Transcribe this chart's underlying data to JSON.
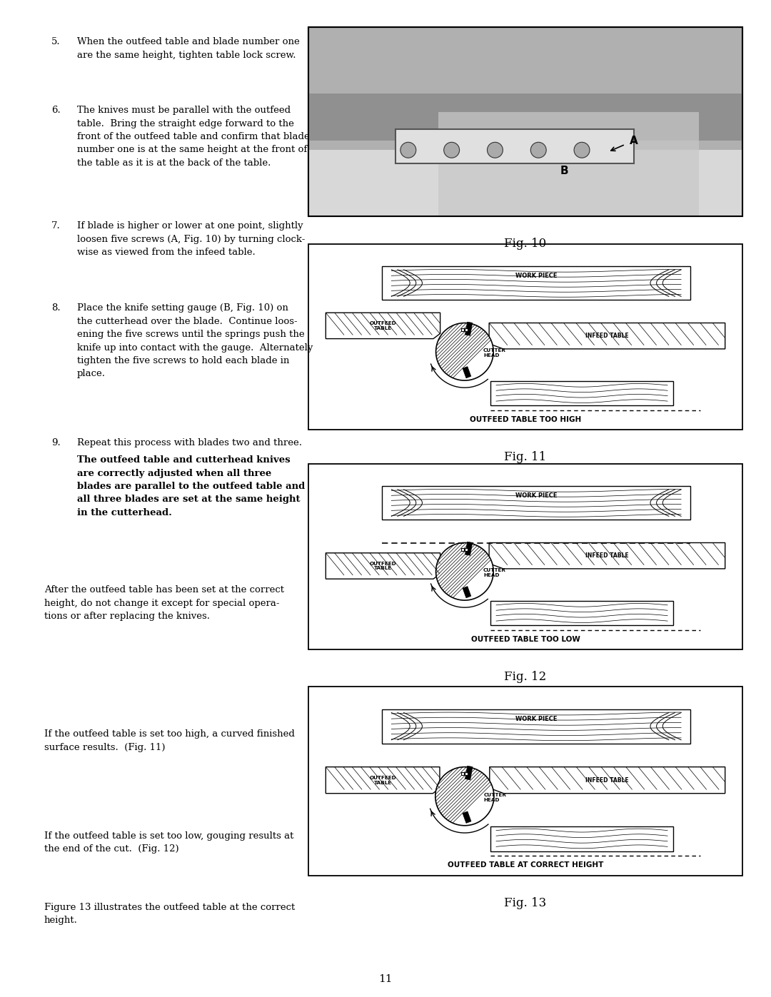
{
  "bg_color": "#ffffff",
  "text_color": "#000000",
  "page_number": "11",
  "fig10_caption": "Fig. 10",
  "fig11_caption": "Fig. 11",
  "fig11_label": "OUTFEED TABLE TOO HIGH",
  "fig12_caption": "Fig. 12",
  "fig12_label": "OUTFEED TABLE TOO LOW",
  "fig13_caption": "Fig. 13",
  "fig13_label": "OUTFEED TABLE AT CORRECT HEIGHT",
  "item5": "When the outfeed table and blade number one\nare the same height, tighten table lock screw.",
  "item6": "The knives must be parallel with the outfeed\ntable.  Bring the straight edge forward to the\nfront of the outfeed table and confirm that blade\nnumber one is at the same height at the front of\nthe table as it is at the back of the table.",
  "item7": "If blade is higher or lower at one point, slightly\nloosen five screws (A, Fig. 10) by turning clock-\nwise as viewed from the infeed table.",
  "item8": "Place the knife setting gauge (B, Fig. 10) on\nthe cutterhead over the blade.  Continue loos-\nening the five screws until the springs push the\nknife up into contact with the gauge.  Alternately\ntighten the five screws to hold each blade in\nplace.",
  "item9a": "Repeat this process with blades two and three.",
  "item9b": "The outfeed table and cutterhead knives\nare correctly adjusted when all three\nblades are parallel to the outfeed table and\nall three blades are set at the same height\nin the cutterhead.",
  "para1": "After the outfeed table has been set at the correct\nheight, do not change it except for special opera-\ntions or after replacing the knives.",
  "para2": "If the outfeed table is set too high, a curved finished\nsurface results.  (Fig. 11)",
  "para3": "If the outfeed table is set too low, gouging results at\nthe end of the cut.  (Fig. 12)",
  "para4": "Figure 13 illustrates the outfeed table at the correct\nheight."
}
